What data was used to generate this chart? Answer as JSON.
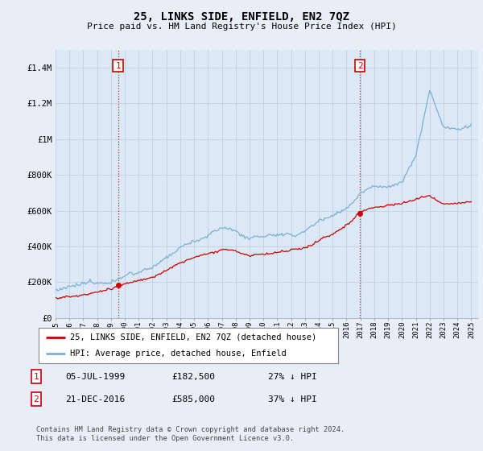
{
  "title": "25, LINKS SIDE, ENFIELD, EN2 7QZ",
  "subtitle": "Price paid vs. HM Land Registry's House Price Index (HPI)",
  "ylim": [
    0,
    1500000
  ],
  "yticks": [
    0,
    200000,
    400000,
    600000,
    800000,
    1000000,
    1200000,
    1400000
  ],
  "ytick_labels": [
    "£0",
    "£200K",
    "£400K",
    "£600K",
    "£800K",
    "£1M",
    "£1.2M",
    "£1.4M"
  ],
  "background_color": "#e8eef8",
  "plot_bg_color": "#dce8f5",
  "grid_color": "#bbccdd",
  "hpi_color": "#7ab0d4",
  "price_color": "#cc0000",
  "sale1_x": 1999.51,
  "sale1_price": 182500,
  "sale2_x": 2016.97,
  "sale2_price": 585000,
  "legend_line1": "25, LINKS SIDE, ENFIELD, EN2 7QZ (detached house)",
  "legend_line2": "HPI: Average price, detached house, Enfield",
  "footer": "Contains HM Land Registry data © Crown copyright and database right 2024.\nThis data is licensed under the Open Government Licence v3.0.",
  "xmin": 1995.0,
  "xmax": 2025.5,
  "hpi_anchors_x": [
    1995.0,
    1996.0,
    1997.0,
    1998.0,
    1999.0,
    2000.0,
    2001.0,
    2002.0,
    2003.0,
    2004.0,
    2005.0,
    2006.0,
    2007.0,
    2008.0,
    2009.0,
    2010.0,
    2011.0,
    2012.0,
    2013.0,
    2014.0,
    2015.0,
    2016.0,
    2017.0,
    2018.0,
    2019.0,
    2020.0,
    2021.0,
    2022.0,
    2023.0,
    2024.0,
    2025.0
  ],
  "hpi_anchors_y": [
    155000,
    162000,
    172000,
    185000,
    205000,
    240000,
    265000,
    295000,
    330000,
    390000,
    430000,
    470000,
    510000,
    495000,
    440000,
    460000,
    465000,
    465000,
    490000,
    545000,
    590000,
    630000,
    720000,
    770000,
    780000,
    800000,
    950000,
    1300000,
    1100000,
    1080000,
    1100000
  ],
  "price_anchors_x": [
    1995.0,
    1996.0,
    1997.0,
    1998.0,
    1999.0,
    2000.0,
    2001.0,
    2002.0,
    2003.0,
    2004.0,
    2005.0,
    2006.0,
    2007.0,
    2008.0,
    2009.0,
    2010.0,
    2011.0,
    2012.0,
    2013.0,
    2014.0,
    2015.0,
    2016.0,
    2017.0,
    2018.0,
    2019.0,
    2020.0,
    2021.0,
    2022.0,
    2023.0,
    2024.0,
    2025.0
  ],
  "price_anchors_y": [
    110000,
    118000,
    128000,
    142000,
    160000,
    180000,
    200000,
    220000,
    255000,
    295000,
    320000,
    340000,
    370000,
    365000,
    330000,
    345000,
    350000,
    355000,
    375000,
    415000,
    455000,
    510000,
    590000,
    610000,
    620000,
    630000,
    650000,
    680000,
    640000,
    645000,
    655000
  ]
}
